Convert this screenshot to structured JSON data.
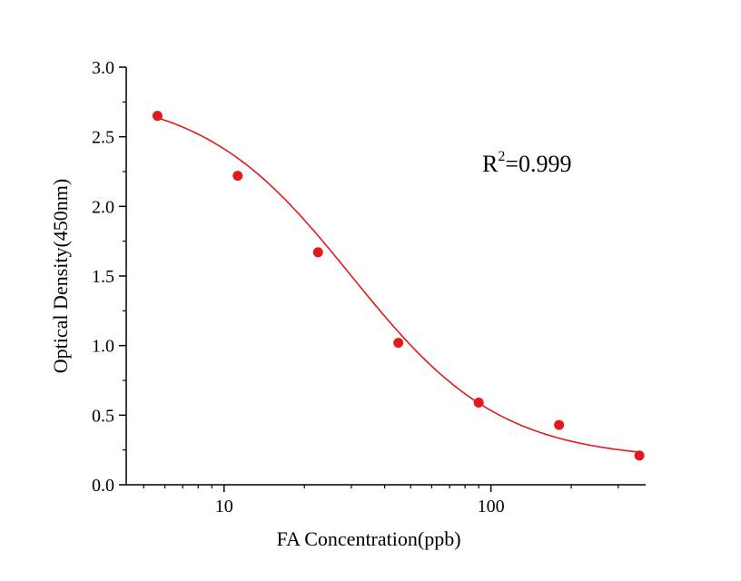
{
  "chart_data": {
    "type": "scatter",
    "xlabel": "FA Concentration(ppb)",
    "ylabel": "Optical Density(450nm)",
    "xscale": "log",
    "xlim": [
      4.3,
      380
    ],
    "ylim": [
      0,
      3.0
    ],
    "x_ticks": [
      10,
      100
    ],
    "x_tick_labels": [
      "10",
      "100"
    ],
    "y_ticks": [
      0,
      0.5,
      1.0,
      1.5,
      2.0,
      2.5,
      3.0
    ],
    "y_tick_labels": [
      "0.0",
      "0.5",
      "1.0",
      "1.5",
      "2.0",
      "2.5",
      "3.0"
    ],
    "series": [
      {
        "points": [
          {
            "x": 5.63,
            "y": 2.65
          },
          {
            "x": 11.25,
            "y": 2.22
          },
          {
            "x": 22.5,
            "y": 1.67
          },
          {
            "x": 45,
            "y": 1.02
          },
          {
            "x": 90,
            "y": 0.59
          },
          {
            "x": 180,
            "y": 0.43
          },
          {
            "x": 360,
            "y": 0.21
          }
        ],
        "fit_curve": {
          "model": "4PL",
          "top": 2.82,
          "bottom": 0.18,
          "ec50": 30,
          "hill": 1.55
        },
        "color": "#e31a1c"
      }
    ],
    "annotation": {
      "r_symbol": "R",
      "superscript": "2",
      "value_text": "=0.999"
    },
    "grid": false,
    "legend": "none"
  }
}
